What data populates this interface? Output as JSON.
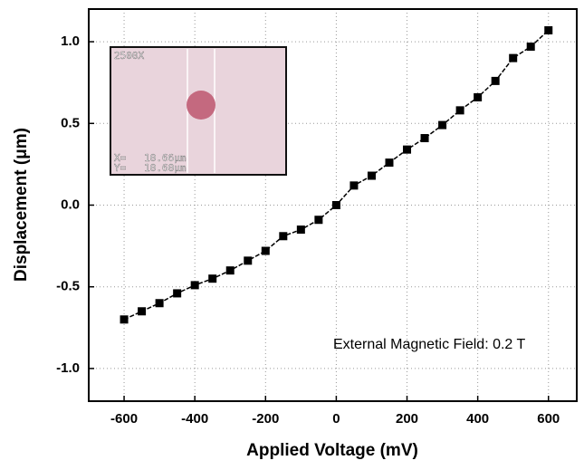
{
  "chart_data": {
    "type": "line",
    "xlabel": "Applied Voltage (mV)",
    "ylabel": "Displacement (μm)",
    "annotation": "External Magnetic Field: 0.2 T",
    "inset": {
      "magnification": "2500X",
      "x_readout": "X=   10.66μm",
      "y_readout": "Y=   10.60μm"
    },
    "x": [
      -600,
      -550,
      -500,
      -450,
      -400,
      -350,
      -300,
      -250,
      -200,
      -150,
      -100,
      -50,
      0,
      50,
      100,
      150,
      200,
      250,
      300,
      350,
      400,
      450,
      500,
      550,
      600
    ],
    "series": [
      {
        "color": "#000000",
        "values": [
          -0.7,
          -0.65,
          -0.6,
          -0.54,
          -0.49,
          -0.45,
          -0.4,
          -0.34,
          -0.28,
          -0.19,
          -0.15,
          -0.09,
          0.0,
          0.12,
          0.18,
          0.26,
          0.34,
          0.41,
          0.49,
          0.58,
          0.66,
          0.76,
          0.9,
          0.97,
          1.07
        ]
      }
    ],
    "xlim": [
      -700,
      680
    ],
    "ylim": [
      -1.2,
      1.2
    ],
    "xticks": [
      -600,
      -400,
      -200,
      0,
      200,
      400,
      600
    ],
    "yticks": [
      {
        "value": -1.0,
        "label": "-1.0"
      },
      -0.5,
      {
        "value": 0.0,
        "label": "0.0"
      },
      0.5,
      {
        "value": 1.0,
        "label": "1.0"
      }
    ],
    "grid": true
  }
}
